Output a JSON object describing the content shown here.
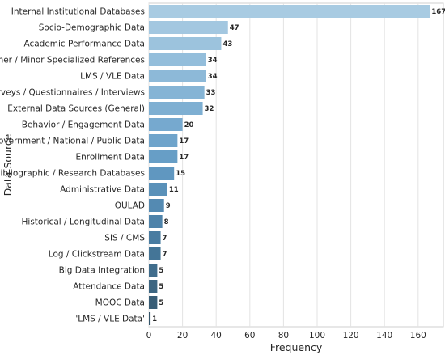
{
  "chart_data": {
    "type": "bar",
    "orientation": "horizontal",
    "xlabel": "Frequency",
    "ylabel": "Data Source",
    "xlim": [
      0,
      175
    ],
    "xticks": [
      0,
      20,
      40,
      60,
      80,
      100,
      120,
      140,
      160
    ],
    "grid": "vertical",
    "categories": [
      "Internal Institutional Databases",
      "Socio-Demographic Data",
      "Academic Performance Data",
      "Other / Minor Specialized References",
      "LMS / VLE Data",
      "Surveys / Questionnaires / Interviews",
      "External Data Sources (General)",
      "Behavior / Engagement Data",
      "Government / National / Public Data",
      "Enrollment Data",
      "Bibliographic / Research Databases",
      "Administrative Data",
      "OULAD",
      "Historical / Longitudinal Data",
      "SIS / CMS",
      "Log / Clickstream Data",
      "Big Data Integration",
      "Attendance Data",
      "MOOC Data",
      "'LMS / VLE Data'"
    ],
    "values": [
      167,
      47,
      43,
      34,
      34,
      33,
      32,
      20,
      17,
      17,
      15,
      11,
      9,
      8,
      7,
      7,
      5,
      5,
      5,
      1
    ],
    "colors": [
      "#a8cbe2",
      "#a3c7e0",
      "#9cc3dd",
      "#94bedb",
      "#8db9d8",
      "#85b4d5",
      "#7eafd2",
      "#76a9cf",
      "#6fa4cb",
      "#679ec6",
      "#6097c0",
      "#5a91b9",
      "#548ab2",
      "#4e83aa",
      "#497ca1",
      "#447597",
      "#406d8c",
      "#3c6581",
      "#385d76",
      "#34556b"
    ]
  }
}
